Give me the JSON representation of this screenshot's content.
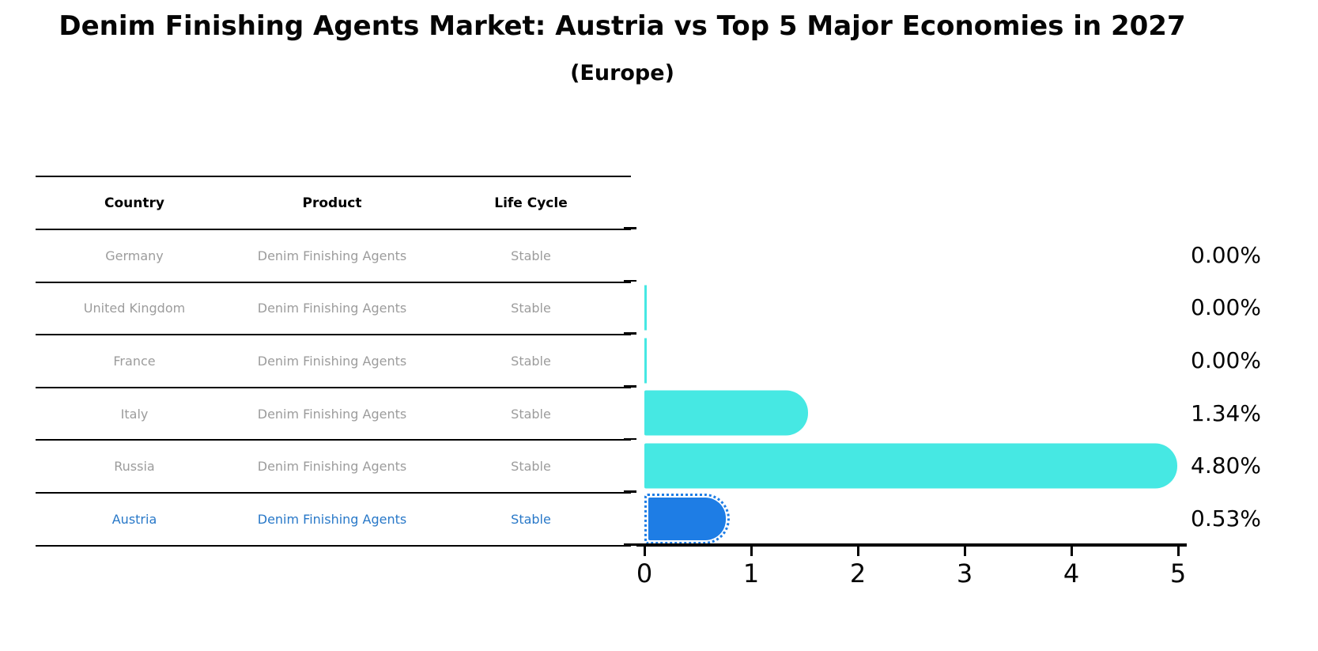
{
  "title": "Denim Finishing Agents Market: Austria vs Top 5 Major Economies in 2027",
  "subtitle": "(Europe)",
  "table": {
    "headers": [
      "Country",
      "Product",
      "Life Cycle"
    ],
    "rows": [
      {
        "country": "Germany",
        "product": "Denim Finishing Agents",
        "life_cycle": "Stable",
        "highlight": false
      },
      {
        "country": "United Kingdom",
        "product": "Denim Finishing Agents",
        "life_cycle": "Stable",
        "highlight": false
      },
      {
        "country": "France",
        "product": "Denim Finishing Agents",
        "life_cycle": "Stable",
        "highlight": false
      },
      {
        "country": "Italy",
        "product": "Denim Finishing Agents",
        "life_cycle": "Stable",
        "highlight": false
      },
      {
        "country": "Russia",
        "product": "Denim Finishing Agents",
        "life_cycle": "Stable",
        "highlight": false
      },
      {
        "country": "Austria",
        "product": "Denim Finishing Agents",
        "life_cycle": "Stable",
        "highlight": true
      }
    ]
  },
  "chart_data": {
    "type": "bar",
    "orientation": "horizontal",
    "title": "Denim Finishing Agents Market: Austria vs Top 5 Major Economies in 2027 (Europe)",
    "categories": [
      "Germany",
      "United Kingdom",
      "France",
      "Italy",
      "Russia",
      "Austria"
    ],
    "values": [
      0.0,
      0.0,
      0.0,
      1.34,
      4.8,
      0.53
    ],
    "value_labels": [
      "0.00%",
      "0.00%",
      "0.00%",
      "1.34%",
      "4.80%",
      "0.53%"
    ],
    "xlim": [
      0,
      5
    ],
    "x_ticks": [
      "0",
      "1",
      "2",
      "3",
      "4",
      "5"
    ],
    "grid": false,
    "legend": "none",
    "bar_colors": [
      "#46E8E3",
      "#46E8E3",
      "#46E8E3",
      "#46E8E3",
      "#46E8E3",
      "#1E7DE5"
    ],
    "highlight_index": 5,
    "zero_value_hairline_indices": [
      1,
      2
    ]
  },
  "colors": {
    "cyan_bar": "#46E8E3",
    "blue_bar": "#1E7DE5",
    "highlight_text": "#2878C8",
    "table_text": "#9C9C9C",
    "axis": "#000000"
  }
}
